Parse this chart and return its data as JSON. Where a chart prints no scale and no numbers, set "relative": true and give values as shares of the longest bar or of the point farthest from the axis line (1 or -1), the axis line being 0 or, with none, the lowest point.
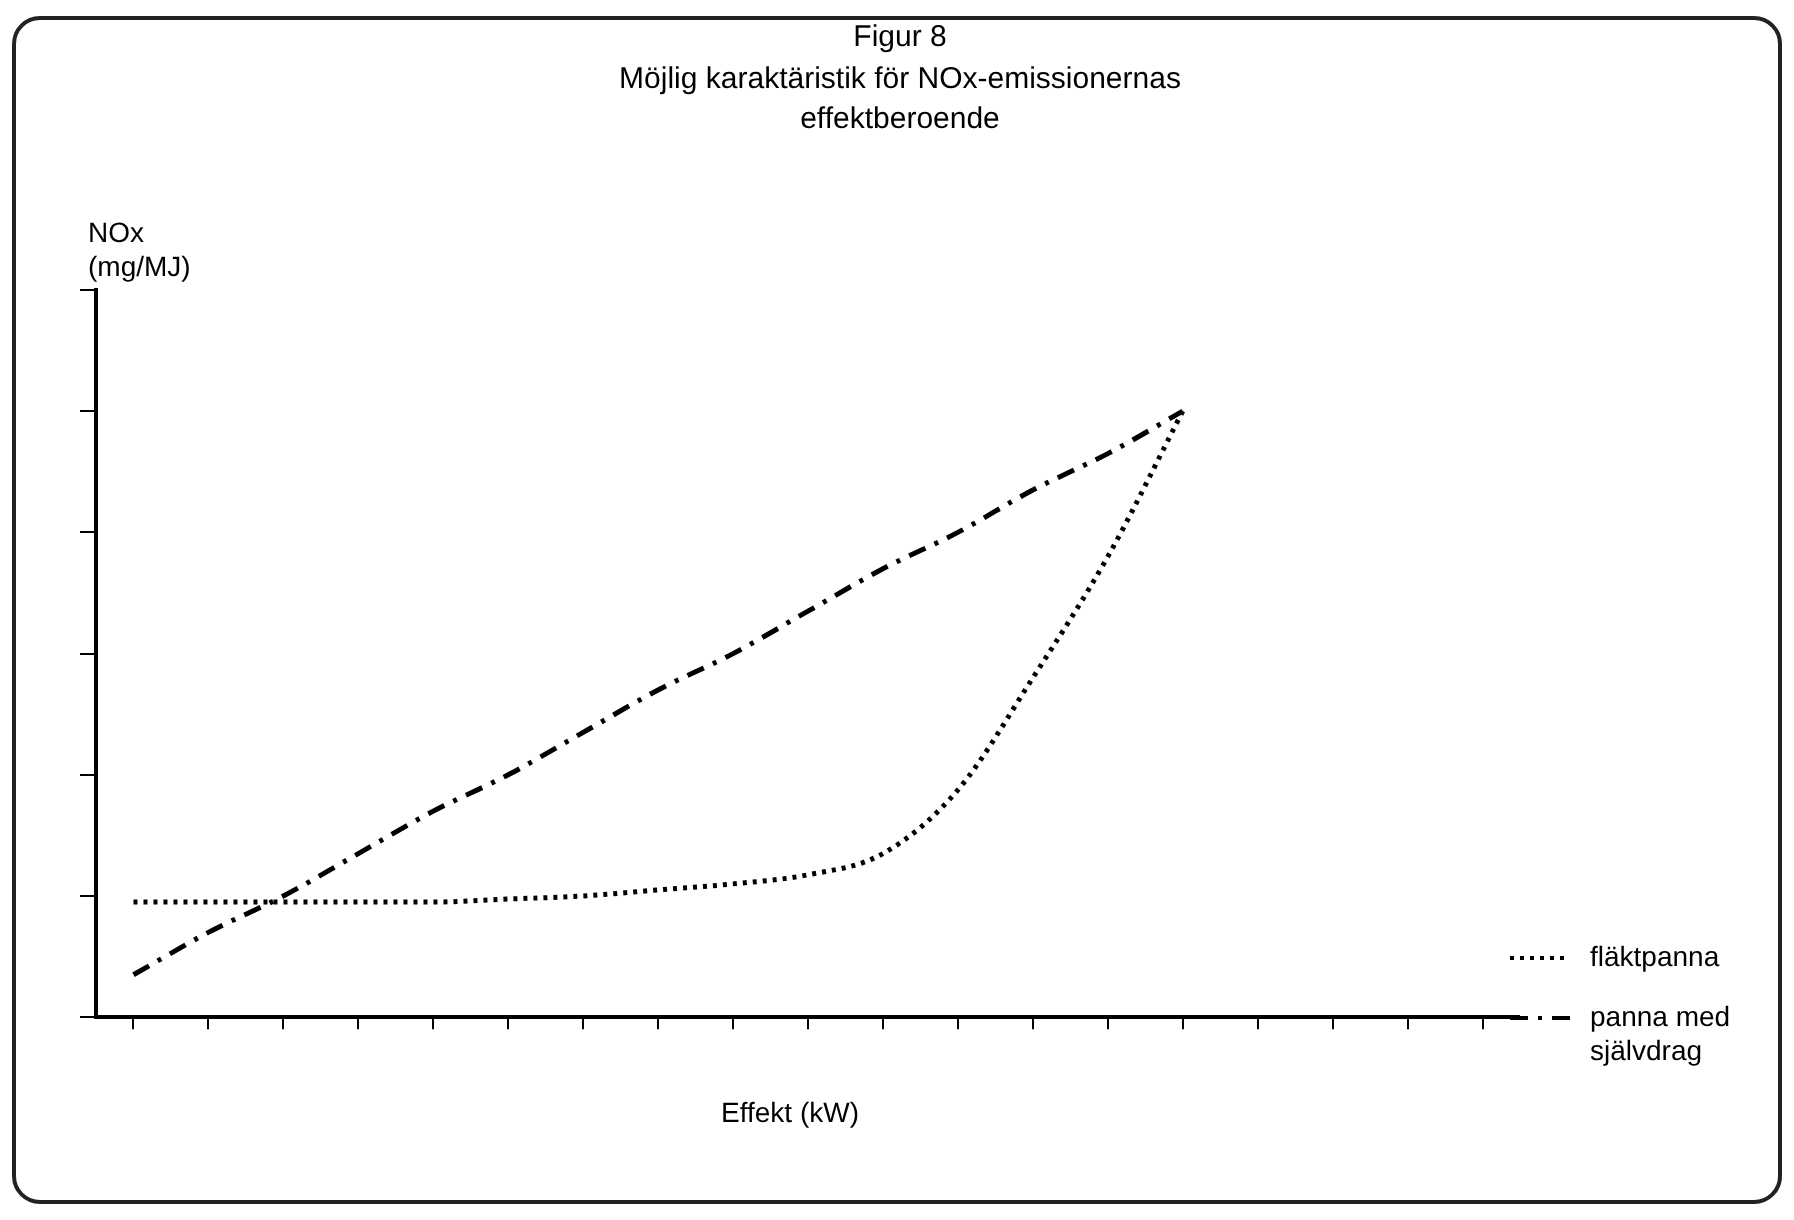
{
  "chart_data": {
    "type": "line",
    "title": "Figur 8",
    "subtitle": "Möjlig karaktäristik för NOx-emissionernas effektberoende",
    "xlabel": "Effekt (kW)",
    "ylabel": "NOx (mg/MJ)",
    "relative": true,
    "legend": "right",
    "grid": false,
    "marker": "none",
    "categories": [
      null,
      null,
      null,
      null,
      null,
      null,
      null,
      null,
      null,
      null,
      null,
      null,
      null,
      null,
      null,
      null,
      null,
      null,
      null
    ],
    "series": [
      {
        "name": "fläktpanna",
        "color": "#000000",
        "line_style": "dotted",
        "values": [
          0.19,
          0.19,
          0.19,
          0.19,
          0.19,
          0.195,
          0.2,
          0.21,
          0.22,
          0.235,
          0.27,
          0.375,
          0.56,
          0.76,
          1.0,
          null,
          null,
          null,
          null
        ]
      },
      {
        "name": "panna med självdrag",
        "color": "#000000",
        "line_style": "dashed",
        "values": [
          0.07,
          0.14,
          0.2,
          0.27,
          0.34,
          0.4,
          0.47,
          0.54,
          0.6,
          0.67,
          0.74,
          0.8,
          0.87,
          0.93,
          1.0,
          null,
          null,
          null,
          null
        ]
      }
    ]
  }
}
